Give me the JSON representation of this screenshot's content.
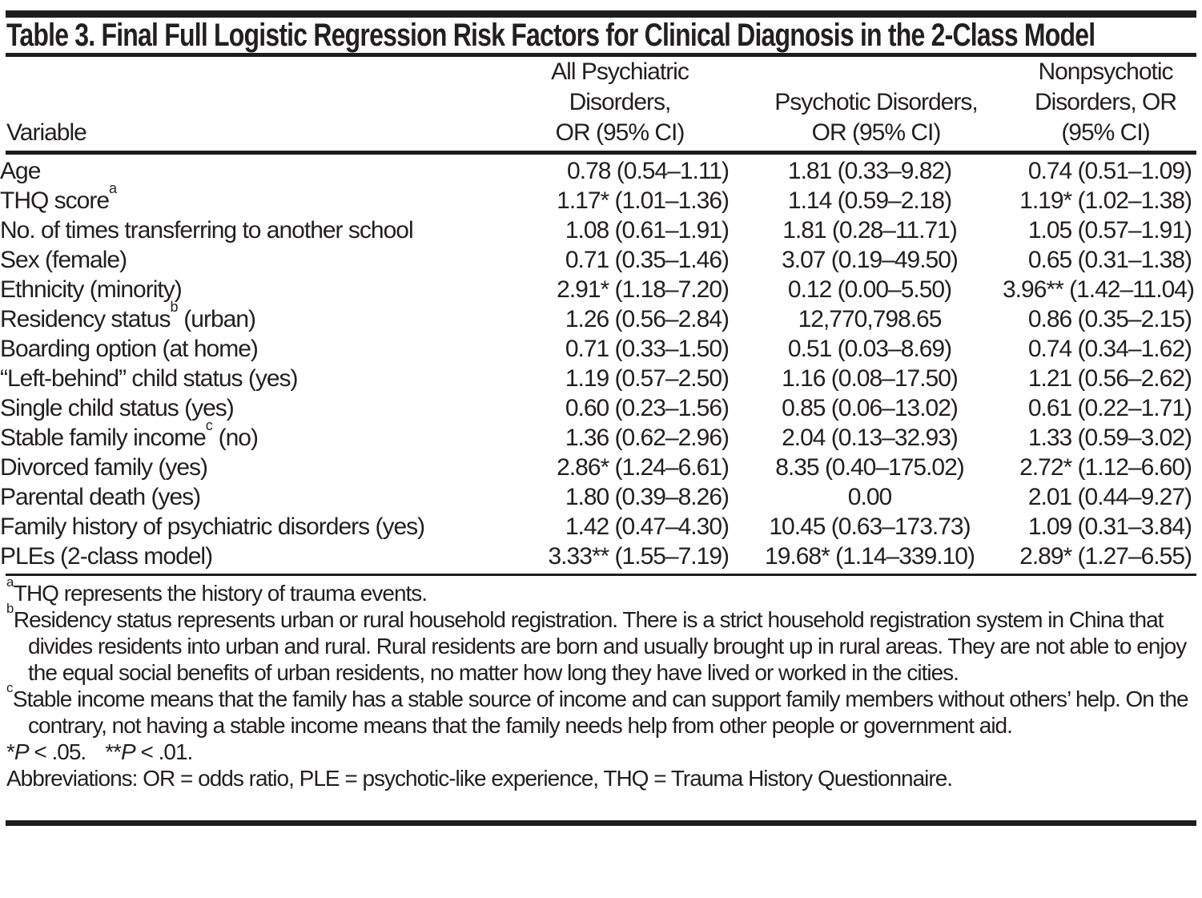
{
  "colors": {
    "text": "#231f20",
    "rule": "#1d1d1b",
    "background": "#ffffff"
  },
  "title": "Table 3. Final Full Logistic Regression Risk Factors for Clinical Diagnosis in the 2-Class Model",
  "table": {
    "header": {
      "variable": "Variable",
      "col2_lines": [
        "All Psychiatric",
        "Disorders,",
        "OR (95% CI)"
      ],
      "col3_lines": [
        "Psychotic Disorders,",
        "OR (95% CI)"
      ],
      "col4_lines": [
        "Nonpsychotic",
        "Disorders, OR",
        "(95% CI)"
      ]
    },
    "rows": [
      {
        "label_pre": "Age",
        "sup": "",
        "label_post": "",
        "c1": "0.78 (0.54–1.11)",
        "c2": "1.81 (0.33–9.82)",
        "c3": "0.74 (0.51–1.09)"
      },
      {
        "label_pre": "THQ score",
        "sup": "a",
        "label_post": "",
        "c1": "1.17* (1.01–1.36)",
        "c2": "1.14 (0.59–2.18)",
        "c3": "1.19* (1.02–1.38)"
      },
      {
        "label_pre": "No. of times transferring to another school",
        "sup": "",
        "label_post": "",
        "c1": "1.08 (0.61–1.91)",
        "c2": "1.81 (0.28–11.71)",
        "c3": "1.05 (0.57–1.91)"
      },
      {
        "label_pre": "Sex (female)",
        "sup": "",
        "label_post": "",
        "c1": "0.71 (0.35–1.46)",
        "c2": "3.07 (0.19–49.50)",
        "c3": "0.65 (0.31–1.38)"
      },
      {
        "label_pre": "Ethnicity (minority)",
        "sup": "",
        "label_post": "",
        "c1": "2.91* (1.18–7.20)",
        "c2": "0.12 (0.00–5.50)",
        "c3": "3.96** (1.42–11.04)"
      },
      {
        "label_pre": "Residency status",
        "sup": "b",
        "label_post": " (urban)",
        "c1": "1.26 (0.56–2.84)",
        "c2": "12,770,798.65",
        "c3": "0.86 (0.35–2.15)"
      },
      {
        "label_pre": "Boarding option (at home)",
        "sup": "",
        "label_post": "",
        "c1": "0.71 (0.33–1.50)",
        "c2": "0.51 (0.03–8.69)",
        "c3": "0.74 (0.34–1.62)"
      },
      {
        "label_pre": "“Left-behind” child status (yes)",
        "sup": "",
        "label_post": "",
        "c1": "1.19 (0.57–2.50)",
        "c2": "1.16 (0.08–17.50)",
        "c3": "1.21 (0.56–2.62)"
      },
      {
        "label_pre": "Single child status (yes)",
        "sup": "",
        "label_post": "",
        "c1": "0.60 (0.23–1.56)",
        "c2": "0.85 (0.06–13.02)",
        "c3": "0.61 (0.22–1.71)"
      },
      {
        "label_pre": "Stable family income",
        "sup": "c",
        "label_post": " (no)",
        "c1": "1.36 (0.62–2.96)",
        "c2": "2.04 (0.13–32.93)",
        "c3": "1.33 (0.59–3.02)"
      },
      {
        "label_pre": "Divorced family (yes)",
        "sup": "",
        "label_post": "",
        "c1": "2.86* (1.24–6.61)",
        "c2": "8.35 (0.40–175.02)",
        "c3": "2.72* (1.12–6.60)"
      },
      {
        "label_pre": "Parental death (yes)",
        "sup": "",
        "label_post": "",
        "c1": "1.80 (0.39–8.26)",
        "c2": "0.00",
        "c3": "2.01 (0.44–9.27)"
      },
      {
        "label_pre": "Family history of psychiatric disorders (yes)",
        "sup": "",
        "label_post": "",
        "c1": "1.42 (0.47–4.30)",
        "c2": "10.45 (0.63–173.73)",
        "c3": "1.09 (0.31–3.84)"
      },
      {
        "label_pre": "PLEs (2-class model)",
        "sup": "",
        "label_post": "",
        "c1": "3.33** (1.55–7.19)",
        "c2": "19.68* (1.14–339.10)",
        "c3": "2.89* (1.27–6.55)"
      }
    ]
  },
  "footnotes": [
    {
      "marker": "a",
      "text": "THQ represents the history of trauma events."
    },
    {
      "marker": "b",
      "text": "Residency status represents urban or rural household registration. There is a strict household registration system in China that divides residents into urban and rural. Rural residents are born and usually brought up in rural areas. They are not able to enjoy the equal social benefits of urban residents, no matter how long they have lived or worked in the cities."
    },
    {
      "marker": "c",
      "text": "Stable income means that the family has a stable source of income and can support family members without others’ help. On the contrary, not having a stable income means that the family needs help from other people or government aid."
    }
  ],
  "significance": {
    "s1_star": "*",
    "s1_p": "P",
    "s1_rest": " < .05.",
    "s2_star": "**",
    "s2_p": "P",
    "s2_rest": " < .01."
  },
  "abbreviations": "Abbreviations: OR = odds ratio, PLE = psychotic-like experience, THQ = Trauma History Questionnaire."
}
